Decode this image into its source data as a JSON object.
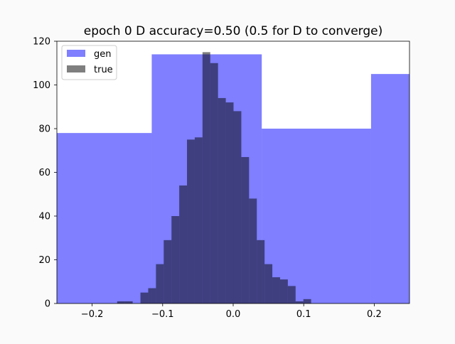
{
  "chart_data": {
    "type": "bar",
    "title": "epoch 0 D accuracy=0.50 (0.5 for D to converge)",
    "xlabel": "",
    "ylabel": "",
    "xlim": [
      -0.25,
      0.25
    ],
    "ylim": [
      0,
      120
    ],
    "xticks": [
      -0.2,
      -0.1,
      0.0,
      0.1,
      0.2
    ],
    "xtick_labels": [
      "−0.2",
      "−0.1",
      "0.0",
      "0.1",
      "0.2"
    ],
    "yticks": [
      0,
      20,
      40,
      60,
      80,
      100,
      120
    ],
    "ytick_labels": [
      "0",
      "20",
      "40",
      "60",
      "80",
      "100",
      "120"
    ],
    "grid": false,
    "legend_position": "top-left",
    "series": [
      {
        "name": "gen",
        "color": "#0000ff",
        "opacity": 0.5,
        "bins": [
          {
            "x0": -0.25,
            "x1": -0.1155,
            "count": 78
          },
          {
            "x0": -0.1155,
            "x1": 0.0405,
            "count": 114
          },
          {
            "x0": 0.0405,
            "x1": 0.1955,
            "count": 80
          },
          {
            "x0": 0.1955,
            "x1": 0.25,
            "count": 105
          }
        ]
      },
      {
        "name": "true",
        "color": "#000000",
        "opacity": 0.5,
        "bins": [
          {
            "x0": -0.1645,
            "x1": -0.1535,
            "count": 1
          },
          {
            "x0": -0.1535,
            "x1": -0.1425,
            "count": 1
          },
          {
            "x0": -0.1315,
            "x1": -0.1205,
            "count": 5
          },
          {
            "x0": -0.1205,
            "x1": -0.1095,
            "count": 7
          },
          {
            "x0": -0.1095,
            "x1": -0.0985,
            "count": 18
          },
          {
            "x0": -0.0985,
            "x1": -0.0875,
            "count": 29
          },
          {
            "x0": -0.0875,
            "x1": -0.0765,
            "count": 40
          },
          {
            "x0": -0.0765,
            "x1": -0.0655,
            "count": 54
          },
          {
            "x0": -0.0655,
            "x1": -0.0545,
            "count": 75
          },
          {
            "x0": -0.0545,
            "x1": -0.0435,
            "count": 76
          },
          {
            "x0": -0.0435,
            "x1": -0.0325,
            "count": 115
          },
          {
            "x0": -0.0325,
            "x1": -0.0215,
            "count": 110
          },
          {
            "x0": -0.0215,
            "x1": -0.0105,
            "count": 94
          },
          {
            "x0": -0.0105,
            "x1": 0.0005,
            "count": 92
          },
          {
            "x0": 0.0005,
            "x1": 0.0115,
            "count": 88
          },
          {
            "x0": 0.0115,
            "x1": 0.0225,
            "count": 67
          },
          {
            "x0": 0.0225,
            "x1": 0.0335,
            "count": 48
          },
          {
            "x0": 0.0335,
            "x1": 0.0445,
            "count": 29
          },
          {
            "x0": 0.0445,
            "x1": 0.0555,
            "count": 18
          },
          {
            "x0": 0.0555,
            "x1": 0.0665,
            "count": 12
          },
          {
            "x0": 0.0665,
            "x1": 0.0775,
            "count": 11
          },
          {
            "x0": 0.0775,
            "x1": 0.0885,
            "count": 8
          },
          {
            "x0": 0.0885,
            "x1": 0.0995,
            "count": 1
          },
          {
            "x0": 0.0995,
            "x1": 0.1105,
            "count": 2
          }
        ]
      }
    ]
  }
}
